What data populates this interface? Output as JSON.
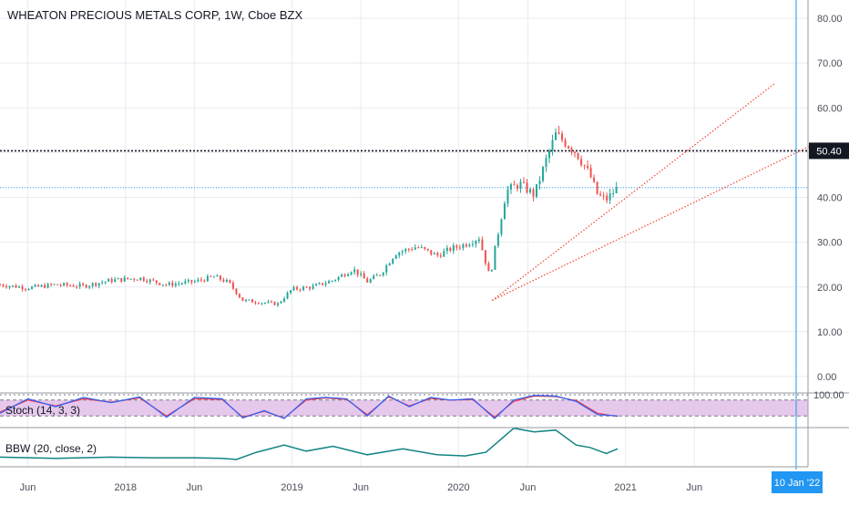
{
  "header": {
    "title": "WHEATON PRECIOUS METALS CORP, 1W, Cboe BZX"
  },
  "colors": {
    "up": "#26a69a",
    "down": "#ef5350",
    "grid": "#e8ebf0",
    "axis_text": "#4a4e59",
    "stoch_k": "#2962ff",
    "stoch_d": "#f23645",
    "stoch_band": "#e1bee7",
    "bbw": "#138484",
    "crosshair": "#2196f3",
    "trendline": "#f44336"
  },
  "price_axis": {
    "ticks": [
      "80.00",
      "70.00",
      "60.00",
      "50.00",
      "40.00",
      "30.00",
      "20.00",
      "10.00",
      "0.00"
    ],
    "marker_label": "50.40"
  },
  "time_axis": {
    "labels": [
      "Jun",
      "2018",
      "Jun",
      "2019",
      "Jun",
      "2020",
      "Jun",
      "2021",
      "Jun"
    ],
    "crosshair_label": "10 Jan '22"
  },
  "indicators": {
    "stoch": {
      "label": "Stoch (14, 3, 3)",
      "scale_label": "100.00"
    },
    "bbw": {
      "label": "BBW (20, close, 2)"
    }
  },
  "chart_data": {
    "type": "candlestick",
    "title": "WHEATON PRECIOUS METALS CORP, 1W, Cboe BZX",
    "xlabel": "",
    "ylabel": "",
    "ylim": [
      0,
      80
    ],
    "x_range": [
      "2017-04",
      "2022-02"
    ],
    "grid": true,
    "horizontal_line": 50.4,
    "last_price": 42.2,
    "close_series": {
      "x": [
        "2017-04-01",
        "2017-06-01",
        "2017-08-01",
        "2017-10-01",
        "2017-12-01",
        "2018-02-01",
        "2018-04-01",
        "2018-06-01",
        "2018-07-15",
        "2018-08-15",
        "2018-09-15",
        "2018-11-01",
        "2018-12-01",
        "2019-01-01",
        "2019-02-15",
        "2019-04-01",
        "2019-05-15",
        "2019-06-15",
        "2019-07-15",
        "2019-08-15",
        "2019-10-01",
        "2019-11-15",
        "2019-12-15",
        "2020-01-15",
        "2020-02-15",
        "2020-03-10",
        "2020-03-20",
        "2020-04-15",
        "2020-05-15",
        "2020-06-15",
        "2020-07-15",
        "2020-08-01",
        "2020-08-20",
        "2020-09-15",
        "2020-10-15",
        "2020-11-01",
        "2020-11-20",
        "2020-12-15"
      ],
      "values": [
        20.5,
        19.8,
        20.5,
        20.2,
        21.5,
        22.0,
        20.5,
        21.2,
        22.3,
        21.0,
        17.0,
        16.5,
        16.2,
        19.5,
        20.0,
        21.5,
        24.0,
        21.2,
        23.0,
        27.5,
        29.0,
        27.0,
        28.5,
        29.5,
        31.0,
        22.0,
        28.0,
        41.5,
        43.0,
        40.5,
        49.5,
        54.0,
        52.5,
        50.0,
        45.0,
        40.5,
        39.5,
        42.2
      ]
    },
    "trendlines": [
      {
        "from": [
          "2020-03-15",
          17.0
        ],
        "to": [
          "2021-11-25",
          65.5
        ],
        "style": "dotted"
      },
      {
        "from": [
          "2020-03-15",
          17.0
        ],
        "to": [
          "2022-02-10",
          51.5
        ],
        "style": "dotted"
      }
    ],
    "stoch": {
      "ylim": [
        0,
        100
      ],
      "bands": [
        20,
        80
      ],
      "x": [
        "2017-04-01",
        "2017-06-01",
        "2017-08-01",
        "2017-10-01",
        "2017-12-01",
        "2018-02-01",
        "2018-04-01",
        "2018-06-01",
        "2018-08-01",
        "2018-09-15",
        "2018-11-01",
        "2018-12-15",
        "2019-02-01",
        "2019-03-15",
        "2019-05-01",
        "2019-06-15",
        "2019-08-01",
        "2019-09-15",
        "2019-11-01",
        "2019-12-15",
        "2020-02-01",
        "2020-03-20",
        "2020-05-01",
        "2020-06-15",
        "2020-08-01",
        "2020-09-15",
        "2020-11-01",
        "2020-12-15"
      ],
      "k": [
        30,
        85,
        55,
        90,
        70,
        92,
        15,
        90,
        85,
        12,
        40,
        10,
        85,
        90,
        85,
        20,
        95,
        55,
        90,
        80,
        85,
        10,
        80,
        98,
        95,
        75,
        25,
        20
      ],
      "d": [
        35,
        80,
        58,
        85,
        72,
        88,
        20,
        85,
        82,
        15,
        38,
        12,
        80,
        88,
        82,
        25,
        92,
        58,
        86,
        80,
        82,
        15,
        75,
        95,
        93,
        78,
        30,
        18
      ]
    },
    "bbw": {
      "x": [
        "2017-04-01",
        "2017-08-01",
        "2017-12-01",
        "2018-03-01",
        "2018-06-01",
        "2018-08-01",
        "2018-09-01",
        "2018-10-15",
        "2018-12-15",
        "2019-02-01",
        "2019-04-01",
        "2019-06-15",
        "2019-09-01",
        "2019-11-15",
        "2020-01-15",
        "2020-03-01",
        "2020-05-01",
        "2020-06-15",
        "2020-08-01",
        "2020-09-15",
        "2020-10-15",
        "2020-11-20",
        "2020-12-15"
      ],
      "values": [
        0.1,
        0.08,
        0.1,
        0.09,
        0.09,
        0.08,
        0.06,
        0.18,
        0.3,
        0.2,
        0.28,
        0.14,
        0.24,
        0.14,
        0.12,
        0.18,
        0.58,
        0.52,
        0.55,
        0.3,
        0.26,
        0.16,
        0.24
      ]
    }
  }
}
